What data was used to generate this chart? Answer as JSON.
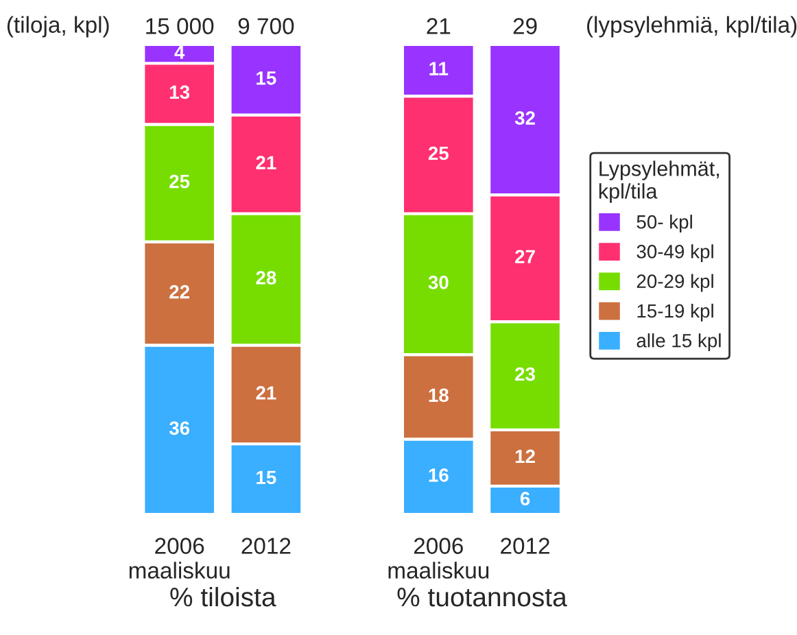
{
  "chart_data": [
    {
      "type": "bar",
      "stacked": true,
      "categories": [
        "2006\nmaaliskuu",
        "2012"
      ],
      "xlabel": "% tiloista",
      "ylim": [
        0,
        100
      ],
      "tick_labels": "x",
      "data_labels": true,
      "grid": false,
      "legend": false,
      "annotations": [
        "(tiloja, kpl)",
        {
          "text": "15 000",
          "x": "2006\nmaaliskuu",
          "y": 100
        },
        {
          "text": "9 700",
          "x": "2012",
          "y": 100
        }
      ],
      "series": [
        {
          "color": "#3aaeff",
          "values": [
            36,
            15
          ]
        },
        {
          "color": "#cc7040",
          "values": [
            22,
            21
          ]
        },
        {
          "color": "#77dd00",
          "values": [
            25,
            28
          ]
        },
        {
          "color": "#ff3070",
          "values": [
            13,
            21
          ]
        },
        {
          "color": "#9933ff",
          "values": [
            4,
            15
          ]
        }
      ]
    },
    {
      "type": "bar",
      "stacked": true,
      "categories": [
        "2006\nmaaliskuu",
        "2012"
      ],
      "xlabel": "% tuotannosta",
      "ylim": [
        0,
        100
      ],
      "tick_labels": "x",
      "data_labels": true,
      "grid": false,
      "legend": "right",
      "legend_title": "Lypsylehmät,\nkpl/tila",
      "annotations": [
        "(lypsylehmiä, kpl/tila)",
        {
          "text": "21",
          "x": "2006\nmaaliskuu",
          "y": 100
        },
        {
          "text": "29",
          "x": "2012",
          "y": 100
        }
      ],
      "series": [
        {
          "name": "alle 15 kpl",
          "color": "#3aaeff",
          "values": [
            16,
            6
          ]
        },
        {
          "name": "15-19 kpl",
          "color": "#cc7040",
          "values": [
            18,
            12
          ]
        },
        {
          "name": "20-29 kpl",
          "color": "#77dd00",
          "values": [
            30,
            23
          ]
        },
        {
          "name": "30-49 kpl",
          "color": "#ff3070",
          "values": [
            25,
            27
          ]
        },
        {
          "name": "50- kpl",
          "color": "#9933ff",
          "values": [
            11,
            32
          ]
        }
      ]
    }
  ]
}
